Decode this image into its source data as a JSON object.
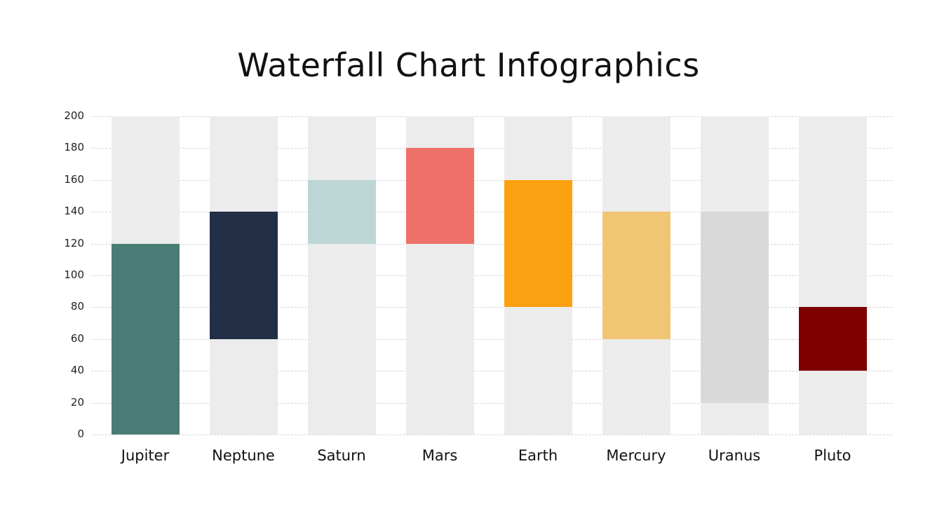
{
  "title": "Waterfall Chart Infographics",
  "chart_data": {
    "type": "bar",
    "subtype": "waterfall",
    "title": "Waterfall Chart Infographics",
    "xlabel": "",
    "ylabel": "",
    "ylim": [
      0,
      200
    ],
    "yticks": [
      0,
      20,
      40,
      60,
      80,
      100,
      120,
      140,
      160,
      180,
      200
    ],
    "grid": true,
    "legend": null,
    "categories": [
      "Jupiter",
      "Neptune",
      "Saturn",
      "Mars",
      "Earth",
      "Mercury",
      "Uranus",
      "Pluto"
    ],
    "ranges": [
      {
        "category": "Jupiter",
        "start": 0,
        "end": 120,
        "color": "#4a7c76"
      },
      {
        "category": "Neptune",
        "start": 60,
        "end": 140,
        "color": "#232f46"
      },
      {
        "category": "Saturn",
        "start": 120,
        "end": 160,
        "color": "#bcd6d5"
      },
      {
        "category": "Mars",
        "start": 120,
        "end": 180,
        "color": "#ee7169"
      },
      {
        "category": "Earth",
        "start": 80,
        "end": 160,
        "color": "#fba011"
      },
      {
        "category": "Mercury",
        "start": 60,
        "end": 140,
        "color": "#f2c574"
      },
      {
        "category": "Uranus",
        "start": 20,
        "end": 140,
        "color": "#d9d9d9"
      },
      {
        "category": "Pluto",
        "start": 40,
        "end": 80,
        "color": "#7f0000"
      }
    ],
    "track_color": "#ececec"
  }
}
